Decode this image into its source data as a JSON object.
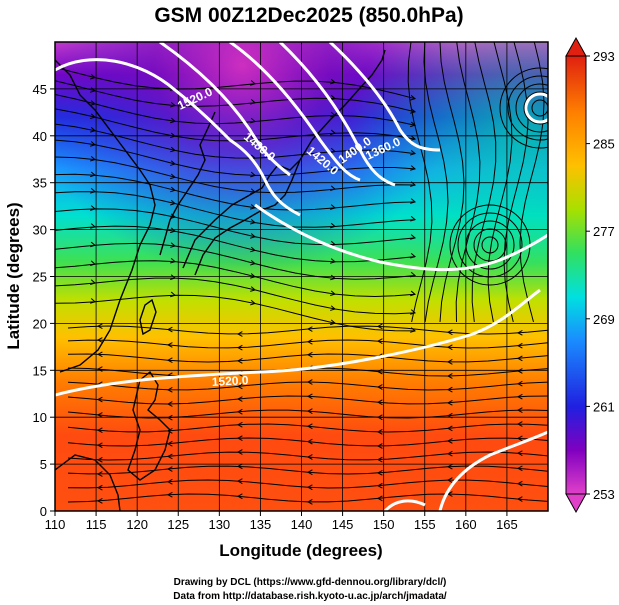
{
  "title": "GSM 00Z12Dec2025 (850.0hPa)",
  "credits": [
    "Drawing by DCL (https://www.gfd-dennou.org/library/dcl/)",
    "Data from http://database.rish.kyoto-u.ac.jp/arch/jmadata/"
  ],
  "map": {
    "xlabel": "Longitude (degrees)",
    "ylabel": "Latitude  (degrees)",
    "xlim": [
      110,
      170
    ],
    "ylim": [
      0,
      50
    ],
    "x_ticks": [
      "110",
      "115",
      "120",
      "125",
      "130",
      "135",
      "140",
      "145",
      "150",
      "155",
      "160",
      "165"
    ],
    "y_ticks": [
      "0",
      "5",
      "10",
      "15",
      "20",
      "25",
      "30",
      "35",
      "40",
      "45"
    ],
    "grid": true,
    "contour_labels": [
      "1520.0",
      "1480.0",
      "1420.0",
      "1400.0",
      "1360.0",
      "1520.0"
    ],
    "colorbar": {
      "ticks": [
        "253",
        "261",
        "269",
        "277",
        "285",
        "293"
      ],
      "range": [
        253,
        293
      ],
      "colors": [
        "#e040c8",
        "#8000c0",
        "#2020e0",
        "#1a8cff",
        "#00e0e0",
        "#30e060",
        "#60d020",
        "#c8e000",
        "#ffc000",
        "#ff8000",
        "#ff4000",
        "#e02010"
      ]
    }
  }
}
